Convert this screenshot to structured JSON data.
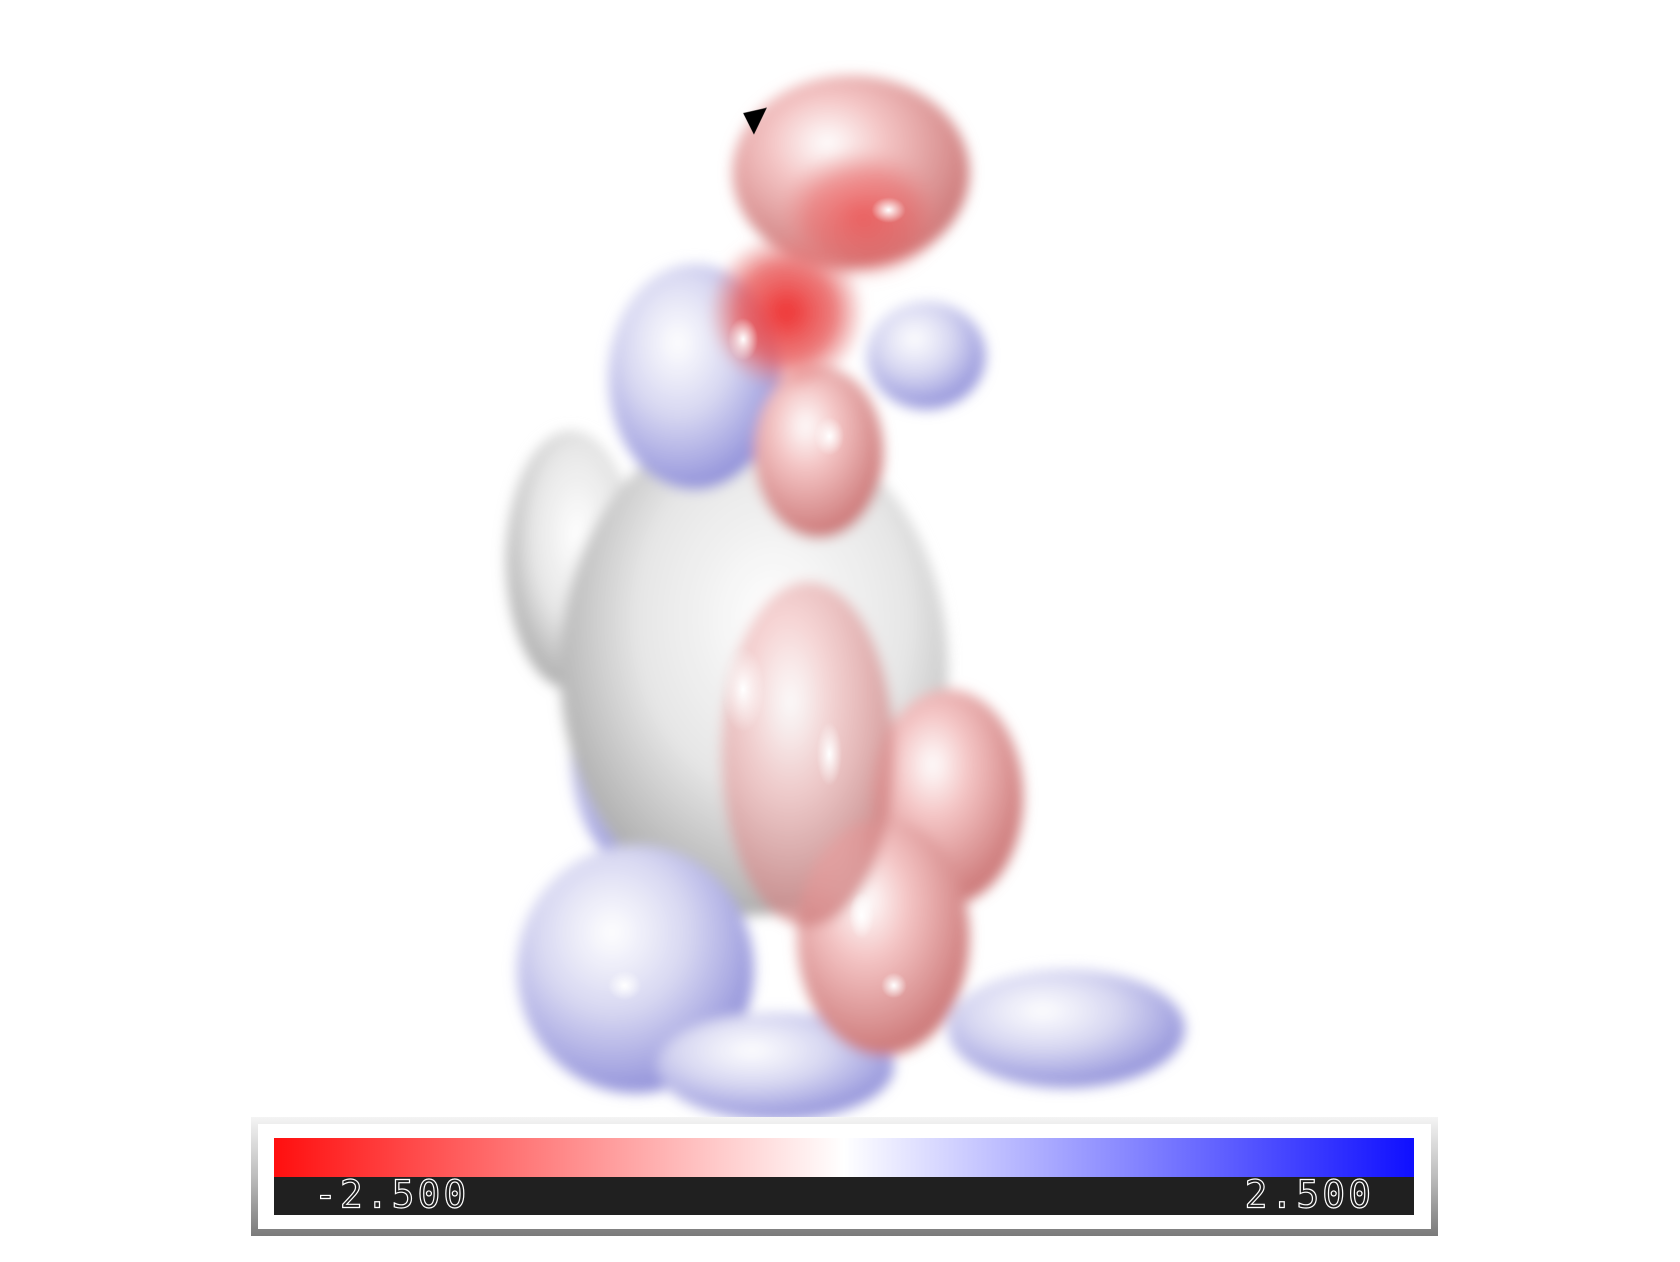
{
  "color_ramp": {
    "min": {
      "value": -2.5,
      "label": "-2.500"
    },
    "max": {
      "value": 2.5,
      "label": "2.500"
    },
    "colors": [
      "#ff0f0f",
      "#ffffff",
      "#0f0fff"
    ]
  }
}
